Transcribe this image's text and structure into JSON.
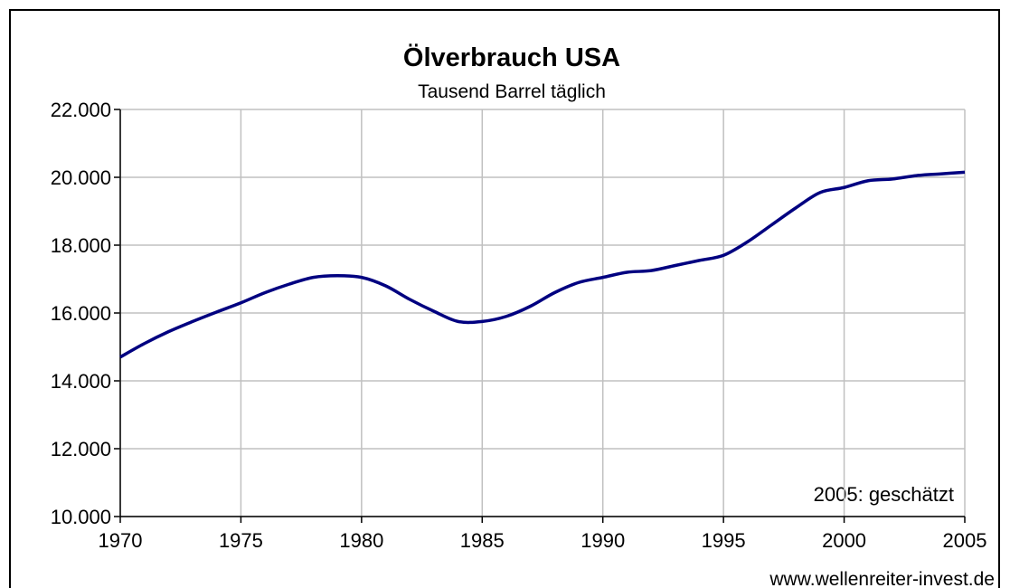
{
  "chart_data": {
    "type": "line",
    "title": "Ölverbrauch USA",
    "subtitle": "Tausend Barrel täglich",
    "annotation": "2005: geschätzt",
    "source": "www.wellenreiter-invest.de",
    "x": [
      1970,
      1971,
      1972,
      1973,
      1974,
      1975,
      1976,
      1977,
      1978,
      1979,
      1980,
      1981,
      1982,
      1983,
      1984,
      1985,
      1986,
      1987,
      1988,
      1989,
      1990,
      1991,
      1992,
      1993,
      1994,
      1995,
      1996,
      1997,
      1998,
      1999,
      2000,
      2001,
      2002,
      2003,
      2004,
      2005
    ],
    "series": [
      {
        "name": "Ölverbrauch",
        "color": "#000080",
        "values": [
          14700,
          15100,
          15450,
          15750,
          16030,
          16300,
          16600,
          16850,
          17050,
          17100,
          17050,
          16800,
          16400,
          16050,
          15750,
          15750,
          15900,
          16200,
          16600,
          16900,
          17050,
          17200,
          17250,
          17400,
          17550,
          17700,
          18100,
          18600,
          19100,
          19550,
          19700,
          19900,
          19950,
          20050,
          20100,
          20150
        ]
      }
    ],
    "xlim": [
      1970,
      2005
    ],
    "xticks": [
      1970,
      1975,
      1980,
      1985,
      1990,
      1995,
      2000,
      2005
    ],
    "ylim": [
      10000,
      22000
    ],
    "yticks": [
      {
        "value": 10000,
        "label": "10.000"
      },
      {
        "value": 12000,
        "label": "12.000"
      },
      {
        "value": 14000,
        "label": "14.000"
      },
      {
        "value": 16000,
        "label": "16.000"
      },
      {
        "value": 18000,
        "label": "18.000"
      },
      {
        "value": 20000,
        "label": "20.000"
      },
      {
        "value": 22000,
        "label": "22.000"
      }
    ],
    "grid": true
  }
}
